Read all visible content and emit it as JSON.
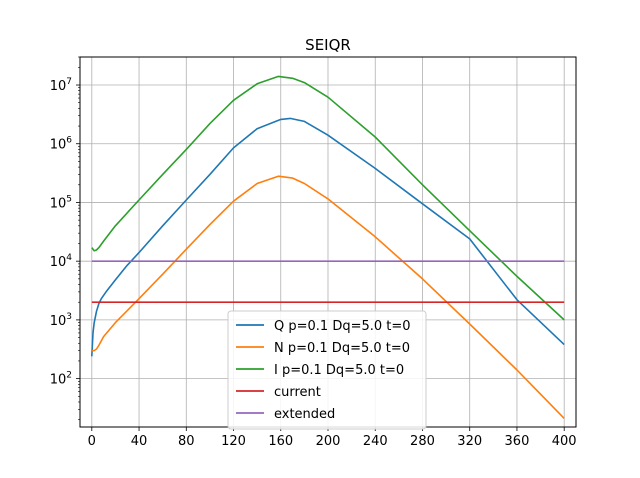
{
  "chart_data": {
    "type": "line",
    "title": "SEIQR",
    "xlabel": "",
    "ylabel": "",
    "xlim": [
      -10,
      410
    ],
    "ylim": [
      15,
      30000000
    ],
    "yscale": "log",
    "grid": true,
    "legend_position": "lower center",
    "x_ticks": [
      0,
      40,
      80,
      120,
      160,
      200,
      240,
      280,
      320,
      360,
      400
    ],
    "x_tick_labels": [
      "0",
      "40",
      "80",
      "120",
      "160",
      "200",
      "240",
      "280",
      "320",
      "360",
      "400"
    ],
    "y_ticks": [
      100,
      1000,
      10000,
      100000,
      1000000,
      10000000
    ],
    "y_tick_labels": [
      {
        "base": "10",
        "exp": "2"
      },
      {
        "base": "10",
        "exp": "3"
      },
      {
        "base": "10",
        "exp": "4"
      },
      {
        "base": "10",
        "exp": "5"
      },
      {
        "base": "10",
        "exp": "6"
      },
      {
        "base": "10",
        "exp": "7"
      }
    ],
    "series": [
      {
        "name": "Q p=0.1 Dq=5.0 t=0",
        "color": "#1f77b4",
        "x": [
          0,
          1,
          2,
          4,
          6,
          8,
          12,
          20,
          30,
          40,
          60,
          80,
          100,
          120,
          140,
          160,
          168,
          180,
          200,
          240,
          280,
          320,
          360,
          400
        ],
        "y": [
          240,
          600,
          900,
          1400,
          1900,
          2300,
          3000,
          4800,
          8500,
          14000,
          40000,
          110000,
          300000,
          850000,
          1800000,
          2600000,
          2700000,
          2400000,
          1400000,
          380000,
          95000,
          24000,
          2200,
          380
        ]
      },
      {
        "name": "N p=0.1 Dq=5.0 t=0",
        "color": "#ff7f0e",
        "x": [
          0,
          2,
          4,
          6,
          10,
          20,
          40,
          60,
          80,
          100,
          120,
          140,
          158,
          170,
          180,
          200,
          240,
          280,
          320,
          360,
          400
        ],
        "y": [
          300,
          300,
          320,
          370,
          520,
          900,
          2300,
          6000,
          16000,
          42000,
          105000,
          210000,
          280000,
          260000,
          210000,
          115000,
          26000,
          5000,
          850,
          140,
          21
        ]
      },
      {
        "name": "I p=0.1 Dq=5.0 t=0",
        "color": "#2ca02c",
        "x": [
          0,
          2,
          4,
          6,
          10,
          20,
          40,
          60,
          80,
          100,
          120,
          140,
          158,
          170,
          180,
          200,
          240,
          280,
          320,
          360,
          400
        ],
        "y": [
          17000,
          15000,
          15500,
          17000,
          22000,
          40000,
          110000,
          300000,
          800000,
          2200000,
          5500000,
          10500000,
          14000000,
          13000000,
          11000000,
          6200000,
          1300000,
          200000,
          33000,
          5500,
          1000
        ]
      },
      {
        "name": "current",
        "color": "#d62728",
        "x": [
          0,
          400
        ],
        "y": [
          2000,
          2000
        ]
      },
      {
        "name": "extended",
        "color": "#9467bd",
        "x": [
          0,
          400
        ],
        "y": [
          10000,
          10000
        ]
      }
    ]
  }
}
